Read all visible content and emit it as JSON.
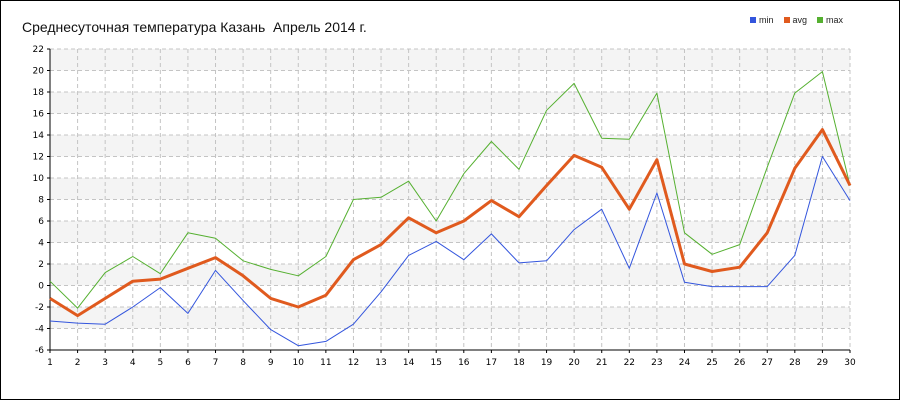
{
  "chart_data": {
    "type": "line",
    "title": "Среднесуточная температура Казань  Апрель 2014 г.",
    "x": [
      1,
      2,
      3,
      4,
      5,
      6,
      7,
      8,
      9,
      10,
      11,
      12,
      13,
      14,
      15,
      16,
      17,
      18,
      19,
      20,
      21,
      22,
      23,
      24,
      25,
      26,
      27,
      28,
      29,
      30
    ],
    "xlim": [
      1,
      30
    ],
    "ylim": [
      -6,
      22
    ],
    "yticks": [
      -6,
      -4,
      -2,
      0,
      2,
      4,
      6,
      8,
      10,
      12,
      14,
      16,
      18,
      20,
      22
    ],
    "grid": true,
    "legend_position": "top-right",
    "series": [
      {
        "name": "min",
        "color": "#3355dd",
        "values": [
          -3.3,
          -3.5,
          -3.6,
          -2.0,
          -0.2,
          -2.6,
          1.4,
          -1.4,
          -4.1,
          -5.6,
          -5.2,
          -3.6,
          -0.6,
          2.8,
          4.1,
          2.4,
          4.8,
          2.1,
          2.3,
          5.2,
          7.1,
          1.6,
          8.6,
          0.3,
          -0.1,
          -0.1,
          -0.1,
          2.8,
          12.0,
          7.9
        ]
      },
      {
        "name": "avg",
        "color": "#e05a1e",
        "values": [
          -1.2,
          -2.8,
          -1.2,
          0.4,
          0.6,
          1.6,
          2.6,
          0.9,
          -1.2,
          -2.0,
          -0.9,
          2.4,
          3.8,
          6.3,
          4.9,
          6.0,
          7.9,
          6.4,
          9.3,
          12.1,
          11.0,
          7.1,
          11.7,
          2.0,
          1.3,
          1.7,
          4.9,
          10.9,
          14.5,
          9.3
        ]
      },
      {
        "name": "max",
        "color": "#55b030",
        "values": [
          0.4,
          -2.1,
          1.2,
          2.7,
          1.1,
          4.9,
          4.4,
          2.3,
          1.5,
          0.9,
          2.7,
          8.0,
          8.2,
          9.7,
          6.0,
          10.4,
          13.4,
          10.8,
          16.3,
          18.8,
          13.7,
          13.6,
          17.9,
          4.9,
          2.9,
          3.8,
          11.0,
          17.9,
          19.9,
          9.3
        ]
      }
    ]
  }
}
